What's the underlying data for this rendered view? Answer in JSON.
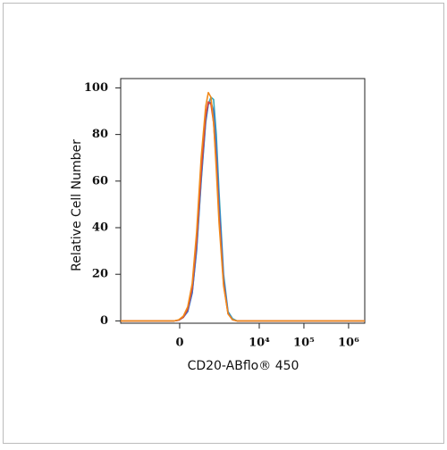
{
  "chart_data": {
    "type": "line",
    "xlabel": "CD20-ABflo® 450",
    "ylabel": "Relative Cell Number",
    "xscale": "biexponential",
    "x": [
      -3450,
      -92,
      -15,
      61,
      141,
      229,
      327,
      447,
      589,
      687,
      797,
      923,
      1068,
      1238,
      1574,
      1989,
      2511,
      3160,
      2300000
    ],
    "series": [
      {
        "color": "#3aa6b9",
        "values": [
          0,
          0,
          0.3,
          1.5,
          4,
          12,
          30,
          60,
          85,
          93,
          96,
          95,
          80,
          55,
          20,
          4,
          1,
          0,
          0
        ]
      },
      {
        "color": "#3b6fd1",
        "values": [
          0,
          0,
          0.3,
          1.5,
          4,
          12,
          31,
          61,
          86,
          93,
          94,
          90,
          74,
          50,
          18,
          3.5,
          0.5,
          0,
          0
        ]
      },
      {
        "color": "#d9453a",
        "values": [
          0,
          0,
          0.3,
          1.5,
          5,
          14,
          34,
          64,
          88,
          94,
          93,
          85,
          68,
          45,
          16,
          3,
          0.5,
          0,
          0
        ]
      },
      {
        "color": "#f08a1c",
        "values": [
          0,
          0,
          0.5,
          2,
          6,
          16,
          38,
          70,
          92,
          98,
          96,
          85,
          65,
          42,
          15,
          3,
          0.5,
          0,
          0
        ]
      }
    ],
    "xlim": [
      -3450,
      2300000
    ],
    "ylim": [
      -1,
      104
    ],
    "xticks": [
      0,
      {
        "value": 10000,
        "label": "10⁴"
      },
      {
        "value": 100000,
        "label": "10⁵"
      },
      {
        "value": 1000000,
        "label": "10⁶"
      }
    ],
    "yticks": [
      0,
      20,
      40,
      60,
      80,
      100
    ]
  }
}
